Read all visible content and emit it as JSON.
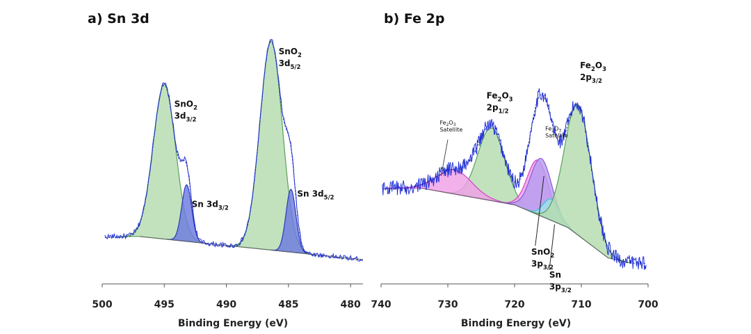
{
  "colors": {
    "raw": "#1f2fd6",
    "envelope": "#2a3a8a",
    "background": "#666666",
    "sno2_fill": "#b4dcae",
    "sno2_stroke": "#5aa05a",
    "sn_fill": "#6c7ae0",
    "sn_stroke": "#2a3ab8",
    "sat_fill": "#f0a0e8",
    "sat_stroke": "#d040c8",
    "sno2p_fill": "#b79cf0",
    "sno2p_stroke": "#8a5ad8",
    "snp_stroke": "#30c8d8"
  },
  "chart_data": [
    {
      "type": "line",
      "panel": "a",
      "title": "a) Sn 3d",
      "xlabel": "Binding Energy (eV)",
      "ylabel": "",
      "xlim": [
        500,
        479
      ],
      "x_reversed": true,
      "xticks": [
        500,
        495,
        490,
        485,
        480
      ],
      "grid": false,
      "baseline": [
        [
          497,
          0.16
        ],
        [
          479,
          0.05
        ]
      ],
      "components": [
        {
          "id": "sno2-3d32",
          "center": 495.0,
          "height": 0.74,
          "width": 0.9,
          "color": "sno2"
        },
        {
          "id": "sn-3d32",
          "center": 493.2,
          "height": 0.27,
          "width": 0.4,
          "color": "sn"
        },
        {
          "id": "sno2-3d52",
          "center": 486.4,
          "height": 1.0,
          "width": 0.9,
          "color": "sno2"
        },
        {
          "id": "sn-3d52",
          "center": 484.8,
          "height": 0.3,
          "width": 0.4,
          "color": "sn"
        }
      ],
      "annotations": [
        {
          "id": "ann-sno2-3d32",
          "lines": [
            {
              "main": "SnO",
              "sub": "2"
            },
            {
              "main": "3d",
              "sub": "3/2"
            }
          ],
          "x": 494.2,
          "y": 0.78
        },
        {
          "id": "ann-sn-3d32",
          "lines": [
            {
              "main": "Sn 3d",
              "sub": "3/2"
            }
          ],
          "x": 492.8,
          "y": 0.3
        },
        {
          "id": "ann-sno2-3d52",
          "lines": [
            {
              "main": "SnO",
              "sub": "2"
            },
            {
              "main": "3d",
              "sub": "5/2"
            }
          ],
          "x": 485.8,
          "y": 1.03
        },
        {
          "id": "ann-sn-3d52",
          "lines": [
            {
              "main": "Sn 3d",
              "sub": "5/2"
            }
          ],
          "x": 484.3,
          "y": 0.35
        }
      ]
    },
    {
      "type": "line",
      "panel": "b",
      "title": "b) Fe 2p",
      "xlabel": "Binding Energy (eV)",
      "ylabel": "",
      "xlim": [
        740,
        700
      ],
      "x_reversed": true,
      "xticks": [
        740,
        730,
        720,
        710,
        700
      ],
      "grid": false,
      "baseline": [
        [
          734,
          0.54
        ],
        [
          720,
          0.43
        ],
        [
          712,
          0.28
        ],
        [
          706,
          0.08
        ],
        [
          703,
          0.05
        ]
      ],
      "components": [
        {
          "id": "fe2o3-2p12",
          "center": 723.5,
          "height": 0.48,
          "width": 2.0,
          "color": "sno2"
        },
        {
          "id": "fe2o3-sat-1",
          "center": 729.0,
          "height": 0.16,
          "width": 2.6,
          "color": "sat"
        },
        {
          "id": "fe2o3-sat-2",
          "center": 716.5,
          "height": 0.36,
          "width": 1.6,
          "color": "sat"
        },
        {
          "id": "sno2-3p32",
          "center": 716.0,
          "height": 0.38,
          "width": 1.6,
          "color": "sno2p"
        },
        {
          "id": "sn-3p32",
          "center": 714.5,
          "height": 0.14,
          "width": 1.2,
          "color": "snp"
        },
        {
          "id": "fe2o3-2p32",
          "center": 710.5,
          "height": 0.86,
          "width": 2.0,
          "color": "sno2"
        }
      ],
      "annotations": [
        {
          "id": "ann-fe2o3-2p12",
          "lines": [
            {
              "main": "Fe",
              "sub": "2",
              "main2": "O",
              "sub2": "3"
            },
            {
              "main": "2p",
              "sub": "1/2"
            }
          ],
          "x": 724.2,
          "y": 1.13
        },
        {
          "id": "ann-fe2o3-2p32",
          "lines": [
            {
              "main": "Fe",
              "sub": "2",
              "main2": "O",
              "sub2": "3"
            },
            {
              "main": "2p",
              "sub": "3/2"
            }
          ],
          "x": 710.2,
          "y": 1.33
        },
        {
          "id": "ann-sat-1",
          "small": true,
          "lines": [
            {
              "main": "Fe",
              "sub": "2",
              "main2": "O",
              "sub2": "3"
            },
            {
              "main": "Satellite"
            }
          ],
          "x": 731.2,
          "y": 0.96
        },
        {
          "id": "ann-sat-2",
          "small": true,
          "lines": [
            {
              "main": "Fe",
              "sub": "2",
              "main2": "O",
              "sub2": "3"
            },
            {
              "main": "Satellite"
            }
          ],
          "x": 715.4,
          "y": 0.92
        },
        {
          "id": "ann-sno2-3p32",
          "lines": [
            {
              "main": "SnO",
              "sub": "2"
            },
            {
              "main": "3p",
              "sub": "3/2"
            }
          ],
          "x": 717.5,
          "y": 0.1
        },
        {
          "id": "ann-sn-3p32",
          "lines": [
            {
              "main": "Sn"
            },
            {
              "main": "3p",
              "sub": "3/2"
            }
          ],
          "x": 714.8,
          "y": -0.05
        }
      ]
    }
  ]
}
